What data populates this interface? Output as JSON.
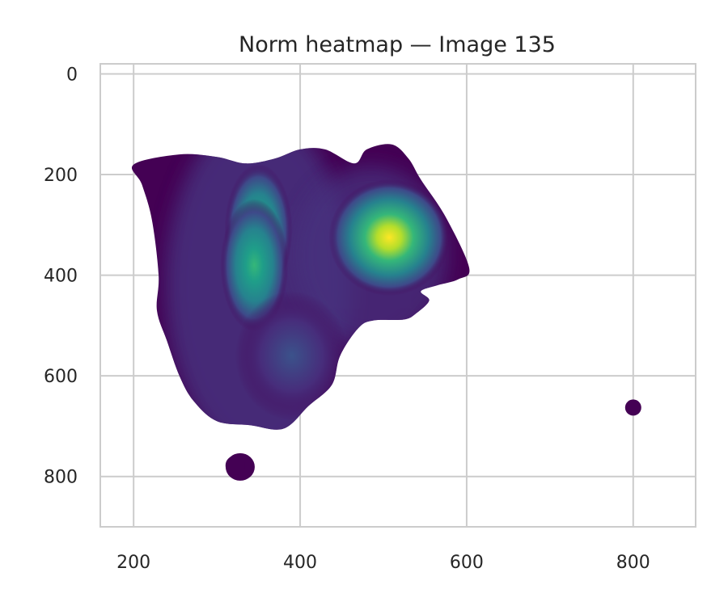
{
  "chart_data": {
    "type": "heatmap",
    "title": "Norm heatmap — Image 135",
    "xlabel": "",
    "ylabel": "",
    "xlim": [
      160,
      875
    ],
    "ylim": [
      900,
      -20
    ],
    "y_inverted": true,
    "grid": true,
    "colormap": "viridis",
    "x_ticks": [
      200,
      400,
      600,
      800
    ],
    "y_ticks": [
      0,
      200,
      400,
      600,
      800
    ],
    "x_tick_labels": [
      "200",
      "400",
      "600",
      "800"
    ],
    "y_tick_labels": [
      "0",
      "200",
      "400",
      "600",
      "800"
    ],
    "density_regions": [
      {
        "name": "main-blob",
        "points": [
          [
            255,
            160
          ],
          [
            300,
            165
          ],
          [
            335,
            178
          ],
          [
            370,
            168
          ],
          [
            400,
            150
          ],
          [
            430,
            150
          ],
          [
            465,
            178
          ],
          [
            480,
            150
          ],
          [
            510,
            140
          ],
          [
            530,
            168
          ],
          [
            545,
            210
          ],
          [
            575,
            285
          ],
          [
            603,
            385
          ],
          [
            590,
            408
          ],
          [
            565,
            420
          ],
          [
            545,
            432
          ],
          [
            555,
            450
          ],
          [
            540,
            475
          ],
          [
            525,
            488
          ],
          [
            488,
            490
          ],
          [
            470,
            505
          ],
          [
            448,
            560
          ],
          [
            438,
            618
          ],
          [
            410,
            660
          ],
          [
            380,
            705
          ],
          [
            340,
            698
          ],
          [
            300,
            690
          ],
          [
            272,
            650
          ],
          [
            255,
            600
          ],
          [
            240,
            530
          ],
          [
            228,
            470
          ],
          [
            230,
            400
          ],
          [
            222,
            290
          ],
          [
            210,
            220
          ],
          [
            200,
            180
          ]
        ]
      },
      {
        "name": "blob-bottom",
        "points": [
          [
            325,
            775
          ],
          [
            334,
            785
          ]
        ]
      },
      {
        "name": "blob-right",
        "points": [
          [
            800,
            663
          ]
        ]
      }
    ],
    "peaks": [
      {
        "x": 507,
        "y": 325,
        "intensity": 1.0
      },
      {
        "x": 350,
        "y": 310,
        "intensity": 0.72
      },
      {
        "x": 345,
        "y": 380,
        "intensity": 0.55
      },
      {
        "x": 390,
        "y": 560,
        "intensity": 0.25
      }
    ]
  }
}
